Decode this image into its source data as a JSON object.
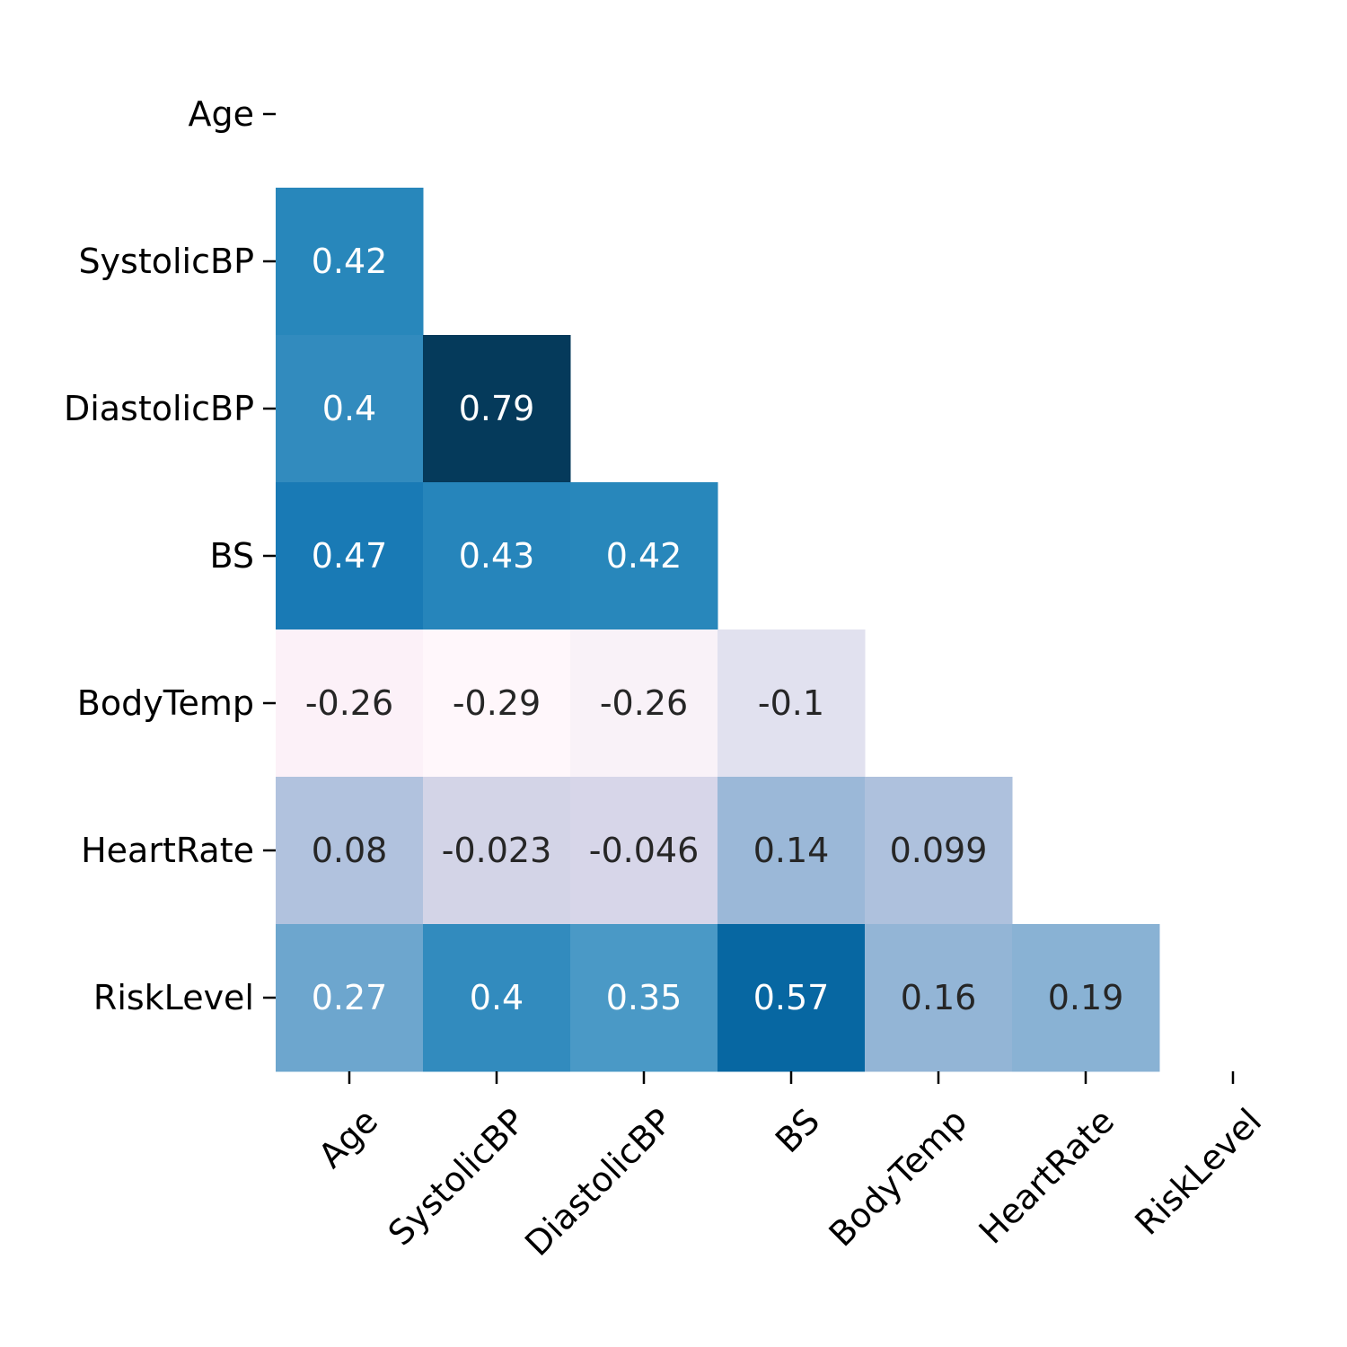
{
  "chart_data": {
    "type": "heatmap",
    "title": "",
    "xlabel": "",
    "ylabel": "",
    "mask": "upper-triangle-including-diagonal",
    "colorbar": false,
    "colormap": "PuBu",
    "vmin": -0.29,
    "vmax": 0.79,
    "x_categories": [
      "Age",
      "SystolicBP",
      "DiastolicBP",
      "BS",
      "BodyTemp",
      "HeartRate",
      "RiskLevel"
    ],
    "y_categories": [
      "Age",
      "SystolicBP",
      "DiastolicBP",
      "BS",
      "BodyTemp",
      "HeartRate",
      "RiskLevel"
    ],
    "values": [
      [
        null,
        null,
        null,
        null,
        null,
        null,
        null
      ],
      [
        0.42,
        null,
        null,
        null,
        null,
        null,
        null
      ],
      [
        0.4,
        0.79,
        null,
        null,
        null,
        null,
        null
      ],
      [
        0.47,
        0.43,
        0.42,
        null,
        null,
        null,
        null
      ],
      [
        -0.26,
        -0.29,
        -0.26,
        -0.1,
        null,
        null,
        null
      ],
      [
        0.08,
        -0.023,
        -0.046,
        0.14,
        0.099,
        null,
        null
      ],
      [
        0.27,
        0.4,
        0.35,
        0.57,
        0.16,
        0.19,
        null
      ]
    ],
    "annotations": [
      [
        null,
        null,
        null,
        null,
        null,
        null,
        null
      ],
      [
        "0.42",
        null,
        null,
        null,
        null,
        null,
        null
      ],
      [
        "0.4",
        "0.79",
        null,
        null,
        null,
        null,
        null
      ],
      [
        "0.47",
        "0.43",
        "0.42",
        null,
        null,
        null,
        null
      ],
      [
        "-0.26",
        "-0.29",
        "-0.26",
        "-0.1",
        null,
        null,
        null
      ],
      [
        "0.08",
        "-0.023",
        "-0.046",
        "0.14",
        "0.099",
        null,
        null
      ],
      [
        "0.27",
        "0.4",
        "0.35",
        "0.57",
        "0.16",
        "0.19",
        null
      ]
    ],
    "colors": [
      [
        null,
        null,
        null,
        null,
        null,
        null,
        null
      ],
      [
        "#2887bb",
        null,
        null,
        null,
        null,
        null,
        null
      ],
      [
        "#328bbe",
        "#053a5b",
        null,
        null,
        null,
        null,
        null
      ],
      [
        "#197ab5",
        "#2685bb",
        "#2887bb",
        null,
        null,
        null,
        null
      ],
      [
        "#fcf1f8",
        "#fff7fb",
        "#f9f2f8",
        "#e1e1ef",
        null,
        null,
        null
      ],
      [
        "#b1c2de",
        "#d3d4e7",
        "#d7d6e9",
        "#9bb8d8",
        "#aec1dd",
        null,
        null
      ],
      [
        "#6da6ce",
        "#328bbe",
        "#4a99c6",
        "#0767a2",
        "#93b5d6",
        "#89b2d4",
        null
      ]
    ],
    "text_colors": {
      "light": "#ffffff",
      "dark": "#262626"
    }
  }
}
